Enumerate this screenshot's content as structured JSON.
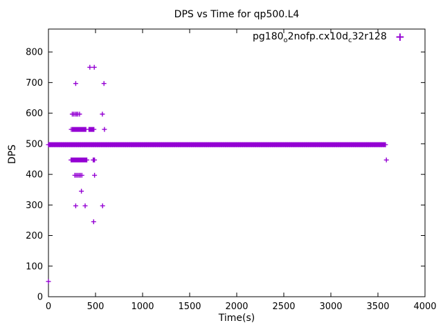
{
  "chart_data": {
    "type": "scatter",
    "title": "DPS vs Time for qp500.L4",
    "xlabel": "Time(s)",
    "ylabel": "DPS",
    "xlim": [
      0,
      4000
    ],
    "ylim": [
      0,
      875
    ],
    "xticks": [
      0,
      500,
      1000,
      1500,
      2000,
      2500,
      3000,
      3500,
      4000
    ],
    "yticks": [
      0,
      100,
      200,
      300,
      400,
      500,
      600,
      700,
      800
    ],
    "grid": false,
    "marker": "+",
    "color": "#9400d3",
    "legend": {
      "position": "top-right",
      "label_plain": "pg180_o2nofp.cx10d_c32r128",
      "label_segments": [
        {
          "text": "pg180"
        },
        {
          "sub": "o"
        },
        {
          "text": "2nofp.cx10d"
        },
        {
          "sub": "c"
        },
        {
          "text": "32r128"
        }
      ],
      "marker": "+"
    },
    "band": {
      "y": 497,
      "x_start": 0,
      "x_end": 3580,
      "point_step": 20
    },
    "points": [
      [
        0,
        50
      ],
      [
        290,
        697
      ],
      [
        590,
        697
      ],
      [
        440,
        750
      ],
      [
        487,
        750
      ],
      [
        253,
        597
      ],
      [
        268,
        597
      ],
      [
        283,
        597
      ],
      [
        298,
        597
      ],
      [
        312,
        597
      ],
      [
        330,
        597
      ],
      [
        573,
        597
      ],
      [
        243,
        547
      ],
      [
        255,
        547
      ],
      [
        263,
        547
      ],
      [
        270,
        547
      ],
      [
        278,
        547
      ],
      [
        285,
        547
      ],
      [
        293,
        547
      ],
      [
        300,
        547
      ],
      [
        308,
        547
      ],
      [
        315,
        547
      ],
      [
        323,
        547
      ],
      [
        330,
        547
      ],
      [
        338,
        547
      ],
      [
        345,
        547
      ],
      [
        353,
        547
      ],
      [
        360,
        547
      ],
      [
        368,
        547
      ],
      [
        375,
        547
      ],
      [
        383,
        547
      ],
      [
        390,
        547
      ],
      [
        398,
        547
      ],
      [
        430,
        547
      ],
      [
        438,
        547
      ],
      [
        445,
        547
      ],
      [
        453,
        547
      ],
      [
        460,
        547
      ],
      [
        468,
        547
      ],
      [
        475,
        547
      ],
      [
        483,
        547
      ],
      [
        595,
        547
      ],
      [
        240,
        447
      ],
      [
        250,
        447
      ],
      [
        258,
        447
      ],
      [
        265,
        447
      ],
      [
        273,
        447
      ],
      [
        280,
        447
      ],
      [
        288,
        447
      ],
      [
        295,
        447
      ],
      [
        303,
        447
      ],
      [
        310,
        447
      ],
      [
        318,
        447
      ],
      [
        325,
        447
      ],
      [
        333,
        447
      ],
      [
        340,
        447
      ],
      [
        348,
        447
      ],
      [
        355,
        447
      ],
      [
        363,
        447
      ],
      [
        370,
        447
      ],
      [
        378,
        447
      ],
      [
        385,
        447
      ],
      [
        393,
        447
      ],
      [
        400,
        447
      ],
      [
        408,
        447
      ],
      [
        475,
        447
      ],
      [
        483,
        447
      ],
      [
        490,
        447
      ],
      [
        3590,
        447
      ],
      [
        280,
        397
      ],
      [
        295,
        397
      ],
      [
        310,
        397
      ],
      [
        325,
        397
      ],
      [
        340,
        397
      ],
      [
        355,
        397
      ],
      [
        490,
        397
      ],
      [
        350,
        345
      ],
      [
        290,
        297
      ],
      [
        390,
        297
      ],
      [
        575,
        297
      ],
      [
        480,
        245
      ]
    ]
  }
}
